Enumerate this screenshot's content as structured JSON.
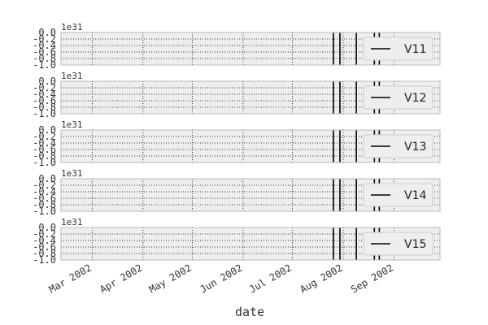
{
  "chart_data": {
    "type": "line",
    "xlabel": "date",
    "ylim": [
      -1.0,
      0.0
    ],
    "y_ticks": [
      "0.0",
      "-0.2",
      "-0.4",
      "-0.6",
      "-0.8",
      "-1.0"
    ],
    "y_offset_label": "1e31",
    "x_range": [
      "2002-02-10",
      "2002-09-29"
    ],
    "x_ticks": [
      "2002-03-01",
      "2002-04-01",
      "2002-05-01",
      "2002-06-01",
      "2002-07-01",
      "2002-08-01",
      "2002-09-01"
    ],
    "x_tick_labels": [
      "Mar 2002",
      "Apr 2002",
      "May 2002",
      "Jun 2002",
      "Jul 2002",
      "Aug 2002",
      "Sep 2002"
    ],
    "grid": true,
    "legend_placement": "right",
    "line_color": "#000000",
    "axes_face_color": "#eeeeee",
    "event_dates": [
      "2002-07-26",
      "2002-07-30",
      "2002-08-09",
      "2002-08-20",
      "2002-08-23"
    ],
    "series": [
      {
        "name": "V11"
      },
      {
        "name": "V12"
      },
      {
        "name": "V13"
      },
      {
        "name": "V14"
      },
      {
        "name": "V15"
      }
    ]
  }
}
